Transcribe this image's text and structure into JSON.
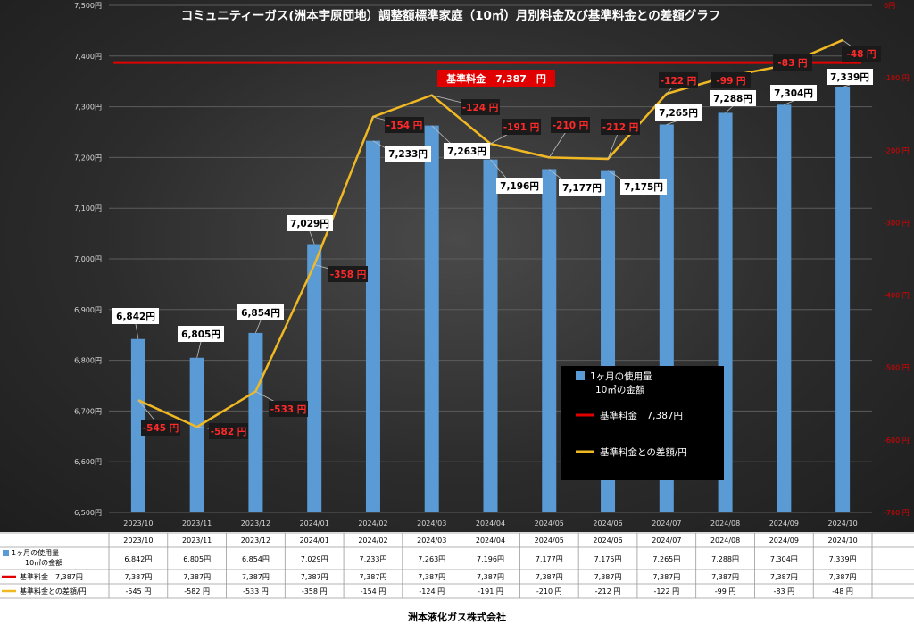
{
  "chart_data": {
    "type": "bar",
    "title": "コミュニティーガス(洲本宇原団地）調整額標準家庭（10㎥）月別料金及び基準料金との差額グラフ",
    "categories": [
      "2023/10",
      "2023/11",
      "2023/12",
      "2024/01",
      "2024/02",
      "2024/03",
      "2024/04",
      "2024/05",
      "2024/06",
      "2024/07",
      "2024/08",
      "2024/09",
      "2024/10"
    ],
    "series": [
      {
        "name": "1ヶ月の使用量\n10㎥の金額",
        "chart": "bar",
        "axis": "left",
        "color": "#5b9bd5",
        "values": [
          6842,
          6805,
          6854,
          7029,
          7233,
          7263,
          7196,
          7177,
          7175,
          7265,
          7288,
          7304,
          7339
        ],
        "labels": [
          "6,842円",
          "6,805円",
          "6,854円",
          "7,029円",
          "7,233円",
          "7,263円",
          "7,196円",
          "7,177円",
          "7,175円",
          "7,265円",
          "7,288円",
          "7,304円",
          "7,339円"
        ],
        "table_values": [
          "6,842円",
          "6,805円",
          "6,854円",
          "7,029円",
          "7,233円",
          "7,263円",
          "7,196円",
          "7,177円",
          "7,175円",
          "7,265円",
          "7,288円",
          "7,304円",
          "7,339円"
        ]
      },
      {
        "name": "基準料金　7,387円",
        "chart": "line",
        "axis": "left",
        "color": "#e00000",
        "values": [
          7387,
          7387,
          7387,
          7387,
          7387,
          7387,
          7387,
          7387,
          7387,
          7387,
          7387,
          7387,
          7387
        ],
        "table_values": [
          "7,387円",
          "7,387円",
          "7,387円",
          "7,387円",
          "7,387円",
          "7,387円",
          "7,387円",
          "7,387円",
          "7,387円",
          "7,387円",
          "7,387円",
          "7,387円",
          "7,387円"
        ]
      },
      {
        "name": "基準料金との差額/円",
        "chart": "line",
        "axis": "right",
        "color": "#f0b823",
        "values": [
          -545,
          -582,
          -533,
          -358,
          -154,
          -124,
          -191,
          -210,
          -212,
          -122,
          -99,
          -83,
          -48
        ],
        "labels": [
          "-545 円",
          "-582 円",
          "-533 円",
          "-358 円",
          "-154 円",
          "-124 円",
          "-191 円",
          "-210 円",
          "-212 円",
          "-122 円",
          "-99 円",
          "-83 円",
          "-48 円"
        ],
        "table_values": [
          "-545 円",
          "-582 円",
          "-533 円",
          "-358 円",
          "-154 円",
          "-124 円",
          "-191 円",
          "-210 円",
          "-212 円",
          "-122 円",
          "-99 円",
          "-83 円",
          "-48 円"
        ]
      }
    ],
    "y_left": {
      "lim": [
        6500,
        7500
      ],
      "ticks": [
        "6,500円",
        "6,600円",
        "6,700円",
        "6,800円",
        "6,900円",
        "7,000円",
        "7,100円",
        "7,200円",
        "7,300円",
        "7,400円",
        "7,500円"
      ]
    },
    "y_right": {
      "lim": [
        -700,
        0
      ],
      "ticks": [
        "-700 円",
        "-600 円",
        "-500 円",
        "-400 円",
        "-300 円",
        "-200 円",
        "-100 円",
        "0円"
      ]
    },
    "ref_label": "基準料金　7,387　円",
    "legend": [
      {
        "text": "1ヶ月の使用量\n10㎥の金額",
        "color": "#5b9bd5"
      },
      {
        "text": "基準料金　7,387円",
        "color": "#e00000"
      },
      {
        "text": "基準料金との差額/円",
        "color": "#f0b823"
      }
    ],
    "legend_position": "right-center",
    "grid": true
  },
  "footer": "洲本液化ガス株式会社"
}
